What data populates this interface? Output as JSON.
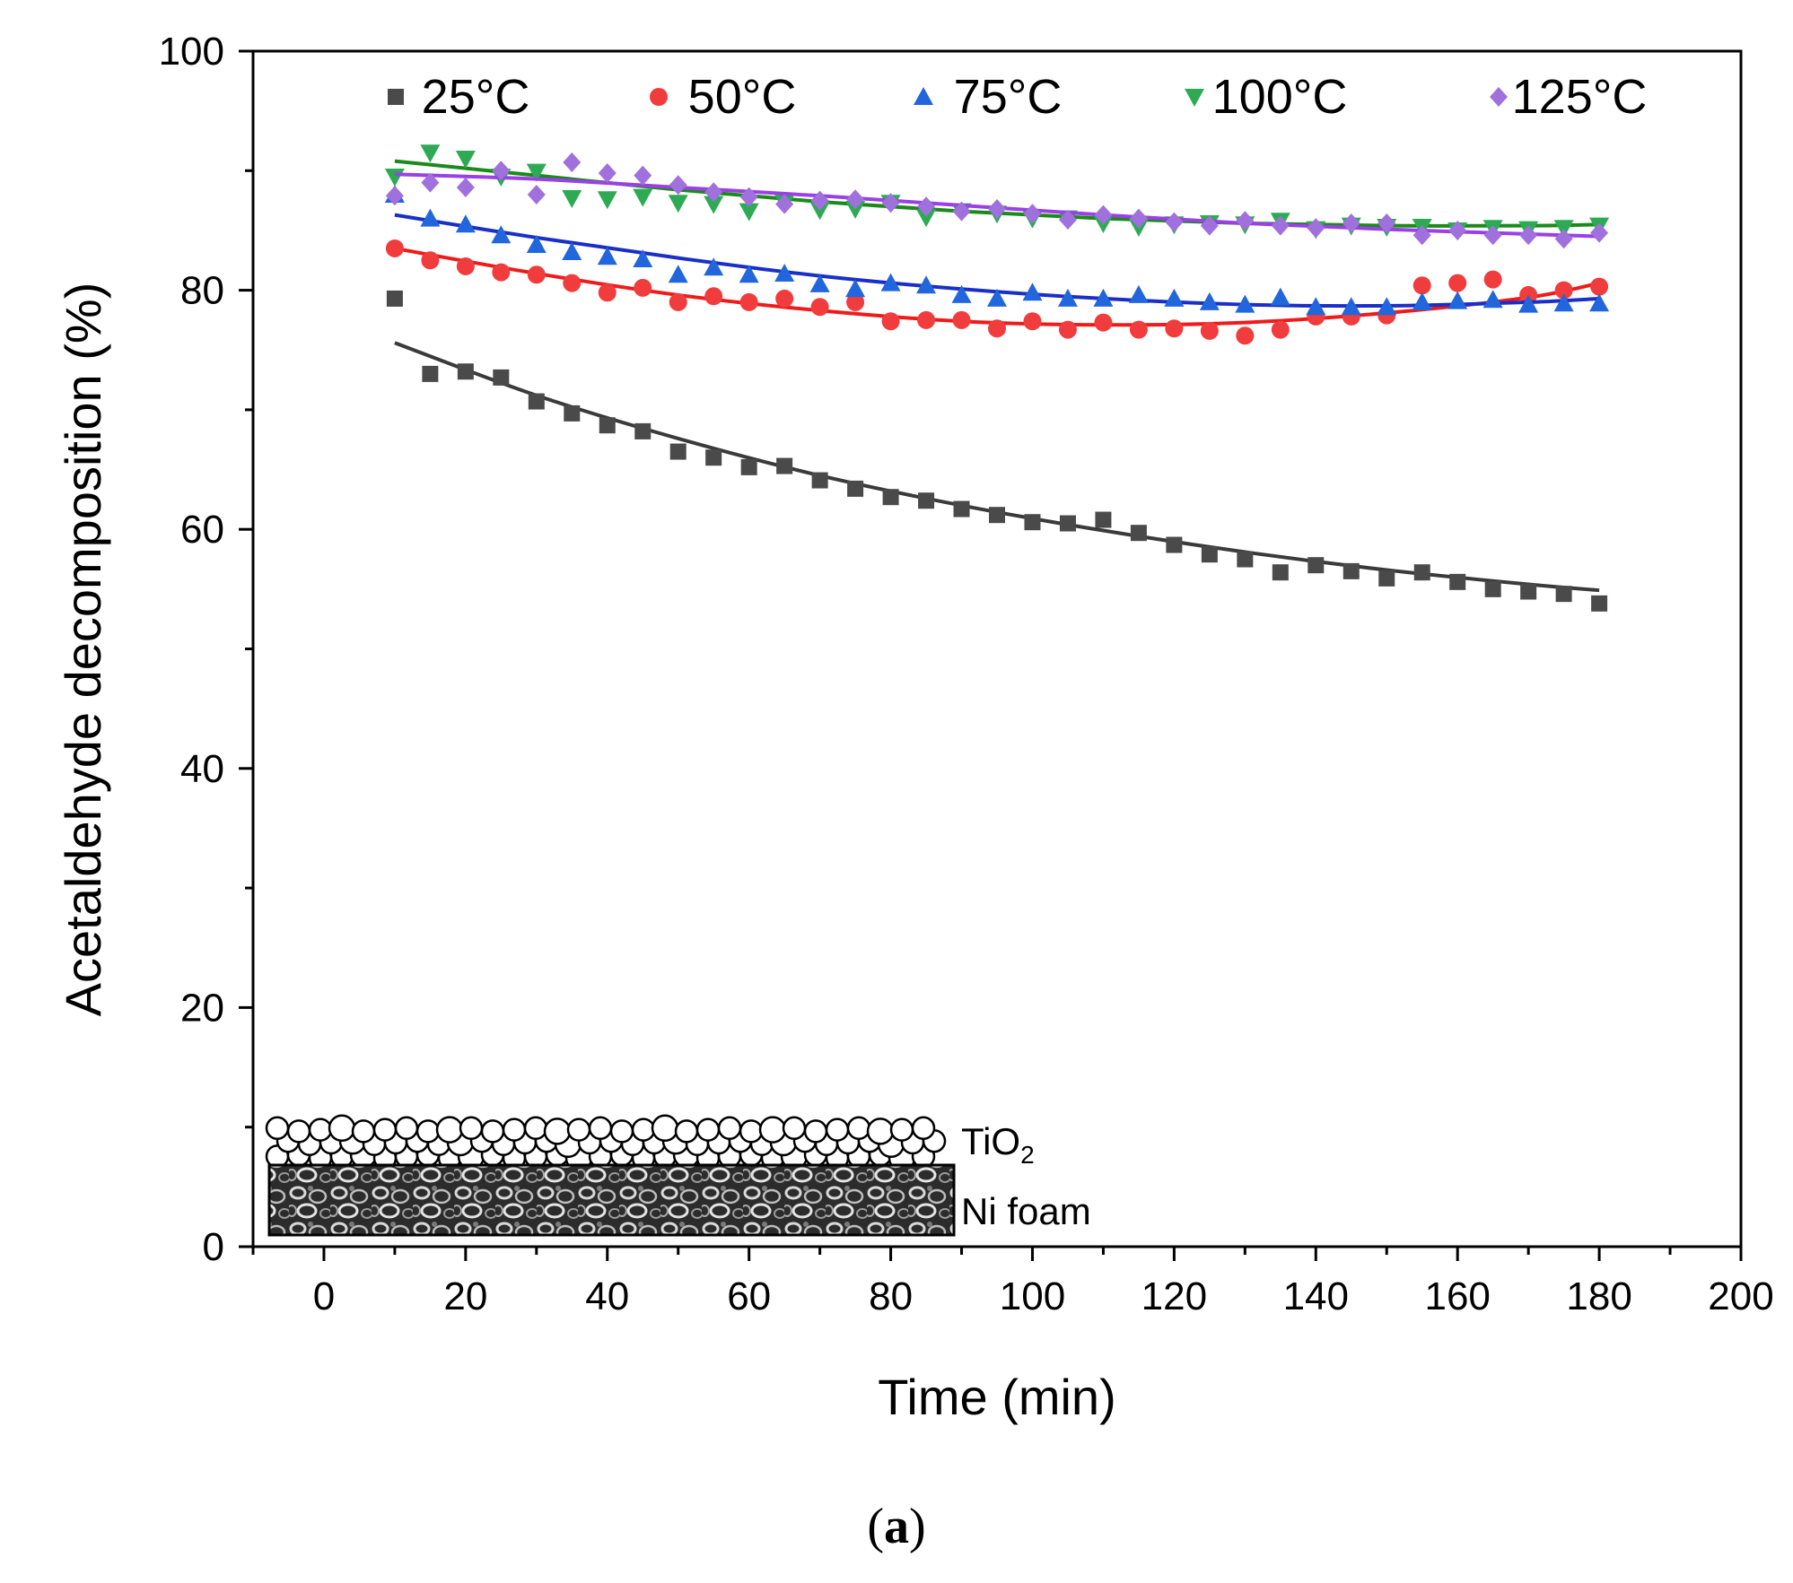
{
  "chart_data": {
    "type": "scatter",
    "title": "",
    "xlabel": "Time (min)",
    "ylabel": "Acetaldehyde decomposition (%)",
    "xlim": [
      -10,
      200
    ],
    "ylim": [
      0,
      100
    ],
    "xticks": [
      0,
      20,
      40,
      60,
      80,
      100,
      120,
      140,
      160,
      180,
      200
    ],
    "xtick_labels": [
      "0",
      "20",
      "40",
      "60",
      "80",
      "100",
      "120",
      "140",
      "160",
      "180",
      "200"
    ],
    "yticks": [
      0,
      20,
      40,
      60,
      80,
      100
    ],
    "ytick_labels": [
      "0",
      "20",
      "40",
      "60",
      "80",
      "100"
    ],
    "legend_position": "top",
    "x": [
      10,
      15,
      20,
      25,
      30,
      35,
      40,
      45,
      50,
      55,
      60,
      65,
      70,
      75,
      80,
      85,
      90,
      95,
      100,
      105,
      110,
      115,
      120,
      125,
      130,
      135,
      140,
      145,
      150,
      155,
      160,
      165,
      170,
      175,
      180
    ],
    "series": [
      {
        "name": "25°C",
        "marker": "square",
        "color": "#4a4a4a",
        "fit_color": "#3a3a3a",
        "values": [
          79.3,
          73.0,
          73.2,
          72.7,
          70.7,
          69.7,
          68.7,
          68.2,
          66.5,
          66.0,
          65.2,
          65.3,
          64.1,
          63.4,
          62.7,
          62.4,
          61.7,
          61.2,
          60.6,
          60.5,
          60.8,
          59.7,
          58.7,
          57.9,
          57.5,
          56.4,
          57.0,
          56.5,
          55.9,
          56.4,
          55.6,
          55.0,
          54.8,
          54.6,
          53.8
        ],
        "fit": [
          [
            10,
            75.6
          ],
          [
            30,
            71.2
          ],
          [
            50,
            67.6
          ],
          [
            70,
            64.5
          ],
          [
            90,
            62.0
          ],
          [
            110,
            59.9
          ],
          [
            130,
            58.1
          ],
          [
            150,
            56.6
          ],
          [
            170,
            55.4
          ],
          [
            180,
            54.9
          ]
        ]
      },
      {
        "name": "50°C",
        "marker": "circle",
        "color": "#f03c3c",
        "fit_color": "#f01a1a",
        "values": [
          83.5,
          82.5,
          82.0,
          81.5,
          81.3,
          80.6,
          79.8,
          80.2,
          79.0,
          79.5,
          79.0,
          79.3,
          78.6,
          79.0,
          77.4,
          77.5,
          77.5,
          76.8,
          77.4,
          76.7,
          77.3,
          76.7,
          76.8,
          76.6,
          76.2,
          76.7,
          77.8,
          77.8,
          77.9,
          80.4,
          80.6,
          80.9,
          79.6,
          80.0,
          80.3
        ],
        "fit": [
          [
            10,
            83.5
          ],
          [
            30,
            81.4
          ],
          [
            50,
            79.6
          ],
          [
            70,
            78.3
          ],
          [
            90,
            77.4
          ],
          [
            110,
            77.1
          ],
          [
            130,
            77.3
          ],
          [
            150,
            78.1
          ],
          [
            170,
            79.4
          ],
          [
            180,
            80.6
          ]
        ]
      },
      {
        "name": "75°C",
        "marker": "triangle-up",
        "color": "#2266dd",
        "fit_color": "#1a2ec8",
        "values": [
          88.0,
          86.0,
          85.5,
          84.6,
          83.8,
          83.2,
          82.8,
          82.6,
          81.3,
          81.9,
          81.3,
          81.4,
          80.5,
          80.1,
          80.6,
          80.4,
          79.6,
          79.3,
          79.8,
          79.3,
          79.3,
          79.6,
          79.3,
          79.0,
          78.8,
          79.4,
          78.6,
          78.6,
          78.6,
          79.0,
          79.1,
          79.2,
          78.8,
          78.9,
          78.9
        ],
        "fit": [
          [
            10,
            86.3
          ],
          [
            30,
            84.4
          ],
          [
            50,
            82.7
          ],
          [
            70,
            81.2
          ],
          [
            90,
            80.1
          ],
          [
            110,
            79.3
          ],
          [
            130,
            78.8
          ],
          [
            150,
            78.7
          ],
          [
            170,
            79.0
          ],
          [
            180,
            79.3
          ]
        ]
      },
      {
        "name": "100°C",
        "marker": "triangle-down",
        "color": "#2eaa55",
        "fit_color": "#1a8a1a",
        "values": [
          89.5,
          91.5,
          91.0,
          89.5,
          89.9,
          87.7,
          87.6,
          87.8,
          87.3,
          87.2,
          86.6,
          87.3,
          86.7,
          86.8,
          87.3,
          86.1,
          86.6,
          86.4,
          86.0,
          86.0,
          85.6,
          85.3,
          85.5,
          85.6,
          85.5,
          85.8,
          85.1,
          85.4,
          85.3,
          85.3,
          85.0,
          85.2,
          85.1,
          85.2,
          85.4
        ],
        "fit": [
          [
            10,
            90.8
          ],
          [
            30,
            89.6
          ],
          [
            50,
            88.4
          ],
          [
            70,
            87.4
          ],
          [
            90,
            86.6
          ],
          [
            110,
            86.0
          ],
          [
            130,
            85.6
          ],
          [
            150,
            85.4
          ],
          [
            170,
            85.4
          ],
          [
            180,
            85.5
          ]
        ]
      },
      {
        "name": "125°C",
        "marker": "diamond",
        "color": "#a070dd",
        "fit_color": "#9a40e6",
        "values": [
          87.9,
          89.0,
          88.6,
          90.0,
          88.0,
          90.7,
          89.8,
          89.6,
          88.8,
          88.2,
          87.8,
          87.2,
          87.5,
          87.6,
          87.3,
          87.0,
          86.6,
          86.8,
          86.4,
          85.9,
          86.3,
          86.0,
          85.7,
          85.4,
          85.8,
          85.4,
          85.2,
          85.6,
          85.6,
          84.6,
          85.0,
          84.6,
          84.6,
          84.3,
          84.8
        ],
        "fit": [
          [
            10,
            89.7
          ],
          [
            30,
            89.3
          ],
          [
            50,
            88.6
          ],
          [
            70,
            87.9
          ],
          [
            90,
            87.1
          ],
          [
            110,
            86.3
          ],
          [
            130,
            85.6
          ],
          [
            150,
            85.1
          ],
          [
            170,
            84.7
          ],
          [
            180,
            84.5
          ]
        ]
      }
    ]
  },
  "inset": {
    "layer_top_label": "TiO",
    "layer_top_subscript": "2",
    "layer_bottom_label": "Ni foam"
  },
  "caption": {
    "open": "(",
    "letter": "a",
    "close": ")"
  }
}
